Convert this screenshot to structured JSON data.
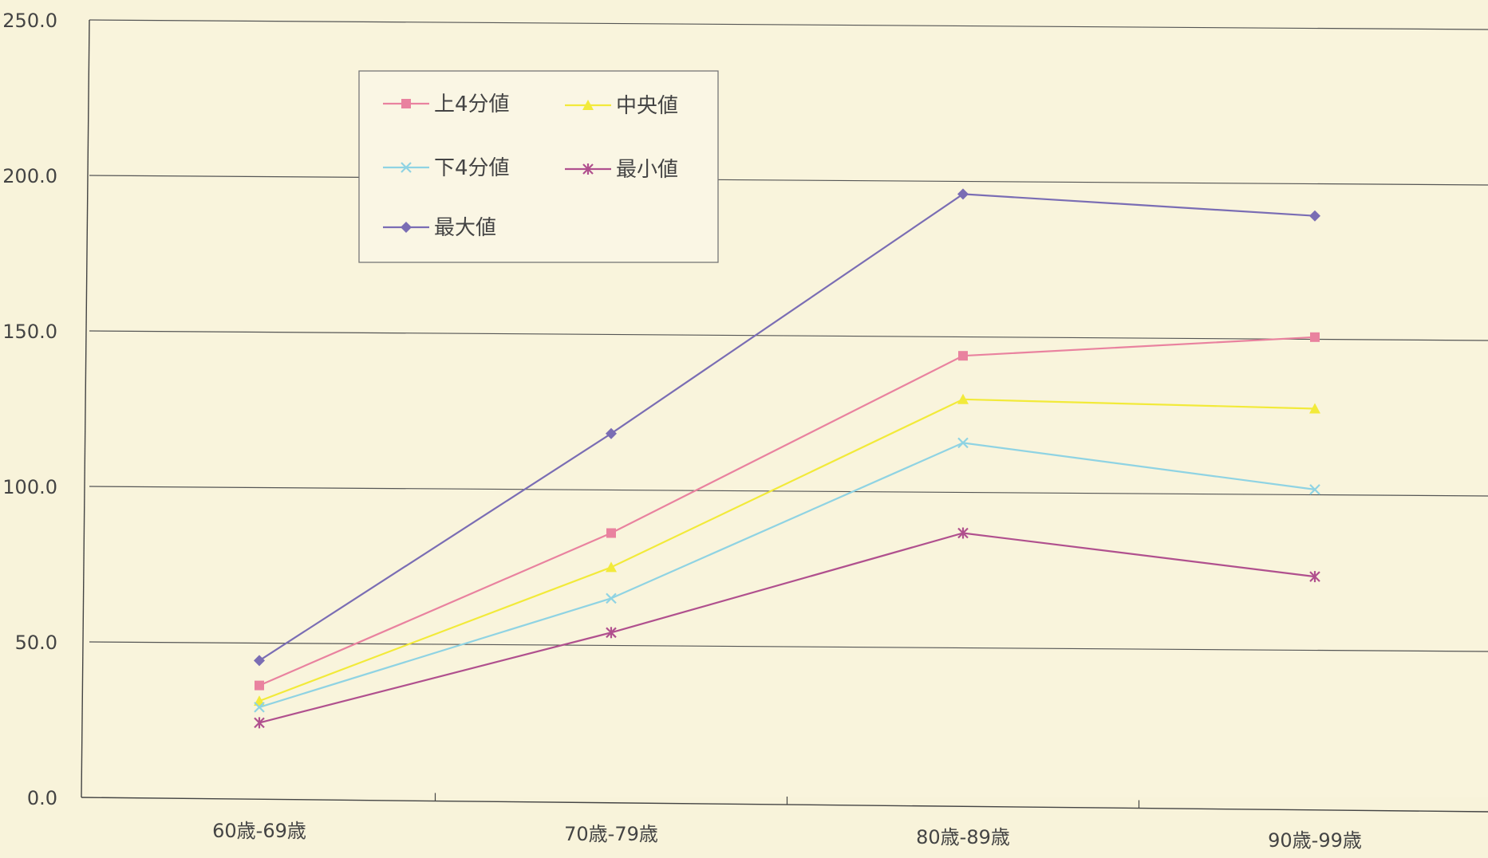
{
  "chart_data": {
    "type": "line",
    "title": "",
    "xlabel": "",
    "ylabel": "",
    "categories": [
      "60歳-69歳",
      "70歳-79歳",
      "80歳-89歳",
      "90歳-99歳"
    ],
    "ylim": [
      0,
      250
    ],
    "yticks": [
      "0.0",
      "50.0",
      "100.0",
      "150.0",
      "200.0",
      "250.0"
    ],
    "grid": true,
    "legend_position": "top-left",
    "series": [
      {
        "name": "上4分値",
        "color": "#e9829f",
        "marker": "square",
        "values": [
          36,
          85,
          142,
          148
        ]
      },
      {
        "name": "中央値",
        "color": "#f2ea3a",
        "marker": "triangle",
        "values": [
          31,
          74,
          128,
          125
        ]
      },
      {
        "name": "下4分値",
        "color": "#8fd3e3",
        "marker": "x",
        "values": [
          29,
          64,
          114,
          99
        ]
      },
      {
        "name": "最小値",
        "color": "#b0508e",
        "marker": "star",
        "values": [
          24,
          53,
          85,
          71
        ]
      },
      {
        "name": "最大値",
        "color": "#7a6db4",
        "marker": "diamond",
        "values": [
          44,
          117,
          194,
          187
        ]
      }
    ]
  }
}
